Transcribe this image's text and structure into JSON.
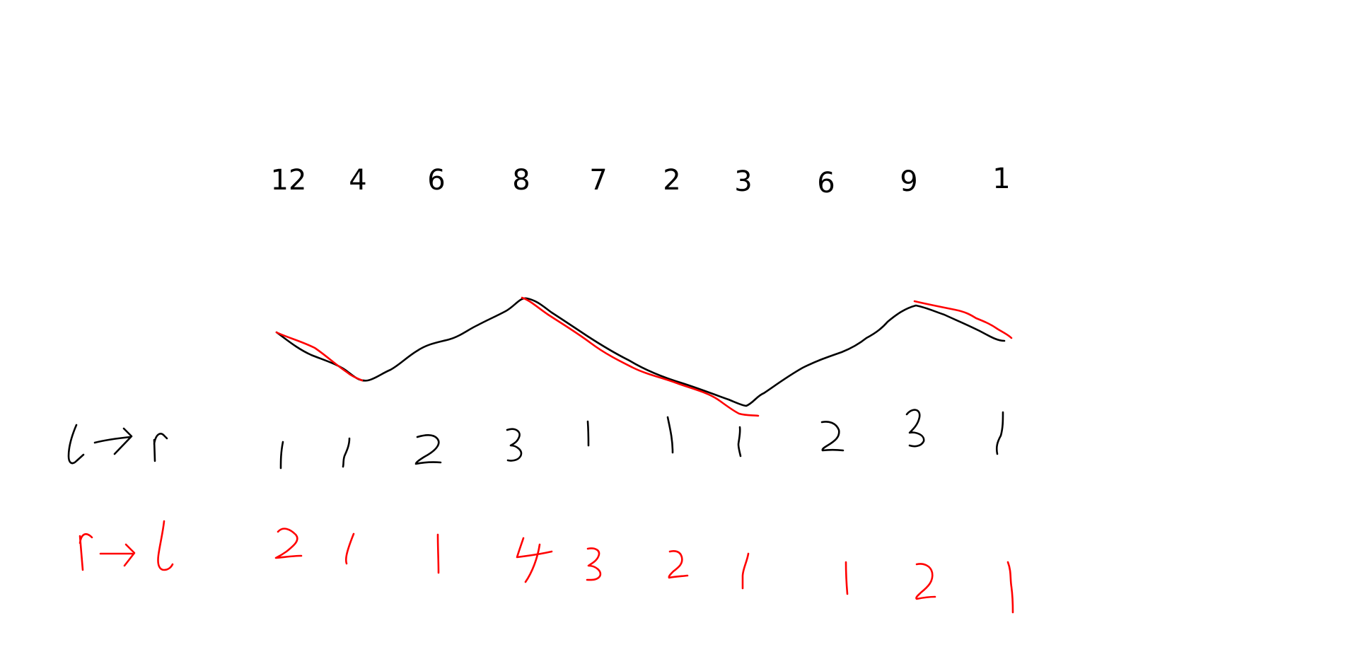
{
  "sequence": [
    "12",
    "4",
    "6",
    "8",
    "7",
    "2",
    "3",
    "6",
    "9",
    "1"
  ],
  "colors": {
    "ink": "#000000",
    "highlight": "#ff0000",
    "background": "#ffffff"
  }
}
